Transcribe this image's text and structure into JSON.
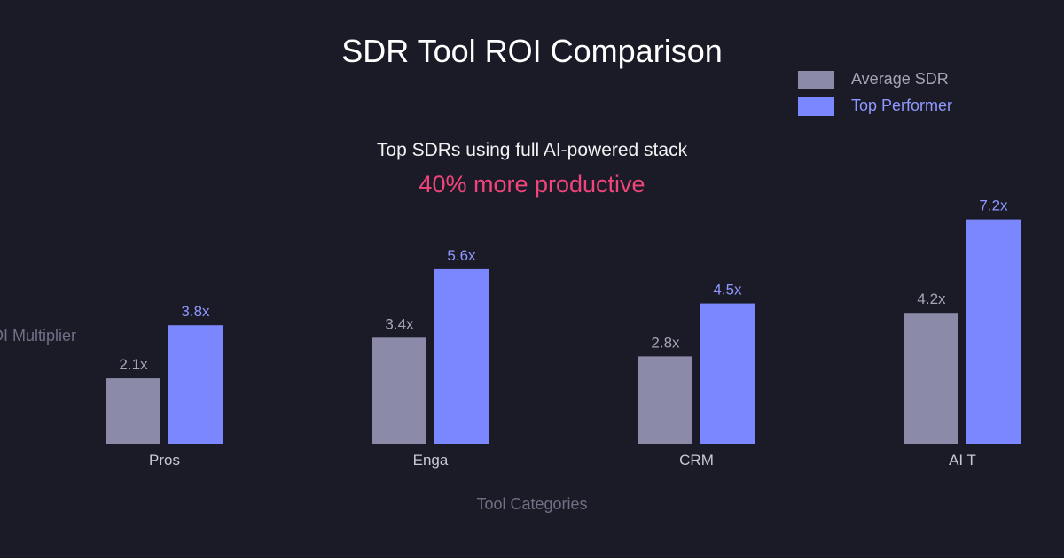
{
  "chart_data": {
    "type": "bar",
    "title": "SDR Tool ROI Comparison",
    "subtitle": "Top SDRs using full AI-powered stack",
    "highlight": "40% more productive",
    "xlabel": "Tool Categories",
    "ylabel": "ROI Multiplier",
    "ylim": [
      0,
      8.5
    ],
    "legend_position": "top-right",
    "categories": [
      "Pros",
      "Enga",
      "CRM",
      "AI T"
    ],
    "series": [
      {
        "name": "Average SDR",
        "color": "#8b8aa8",
        "values": [
          2.1,
          3.4,
          2.8,
          4.2
        ],
        "labels": [
          "2.1x",
          "3.4x",
          "2.8x",
          "4.2x"
        ]
      },
      {
        "name": "Top Performer",
        "color": "#7b87ff",
        "values": [
          3.8,
          5.6,
          4.5,
          7.2
        ],
        "labels": [
          "3.8x",
          "5.6x",
          "4.5x",
          "7.2x"
        ]
      }
    ],
    "colors": {
      "background": "#1b1b27",
      "title": "#ffffff",
      "subtitle": "#f2f2f2",
      "highlight": "#f0457a",
      "axis_label": "#6f6f86",
      "tick_label": "#c9c9d6",
      "avg_label": "#a5a5b5",
      "top_label": "#8e98ff"
    }
  }
}
